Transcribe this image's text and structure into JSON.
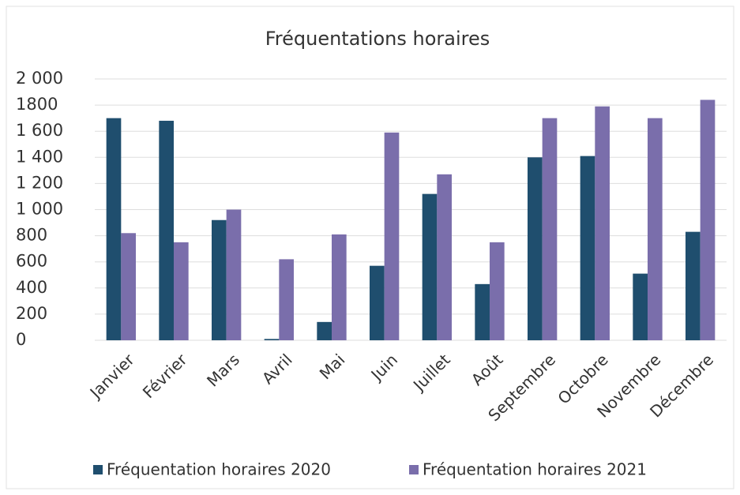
{
  "chart_data": {
    "type": "bar",
    "title": "Fréquentations horaires",
    "categories": [
      "Janvier",
      "Février",
      "Mars",
      "Avril",
      "Mai",
      "Juin",
      "Juillet",
      "Août",
      "Septembre",
      "Octobre",
      "Novembre",
      "Décembre"
    ],
    "series": [
      {
        "name": "Fréquentation horaires 2020",
        "color": "#1f4e6e",
        "values": [
          1700,
          1680,
          920,
          10,
          140,
          570,
          1120,
          430,
          1400,
          1410,
          510,
          830
        ]
      },
      {
        "name": "Fréquentation horaires 2021",
        "color": "#7a6eab",
        "values": [
          820,
          750,
          1000,
          620,
          810,
          1590,
          1270,
          750,
          1700,
          1790,
          1700,
          1840
        ]
      }
    ],
    "ylim": [
      0,
      2000
    ],
    "yticks": [
      0,
      200,
      400,
      600,
      800,
      {
        "value": 1000,
        "label": "1 000"
      },
      {
        "value": 1200,
        "label": "1 200"
      },
      {
        "value": 1400,
        "label": "1 400"
      },
      {
        "value": 1600,
        "label": "1 600"
      },
      1800,
      {
        "value": 2000,
        "label": "2 000"
      }
    ],
    "grid": true,
    "legend": "bottom"
  }
}
